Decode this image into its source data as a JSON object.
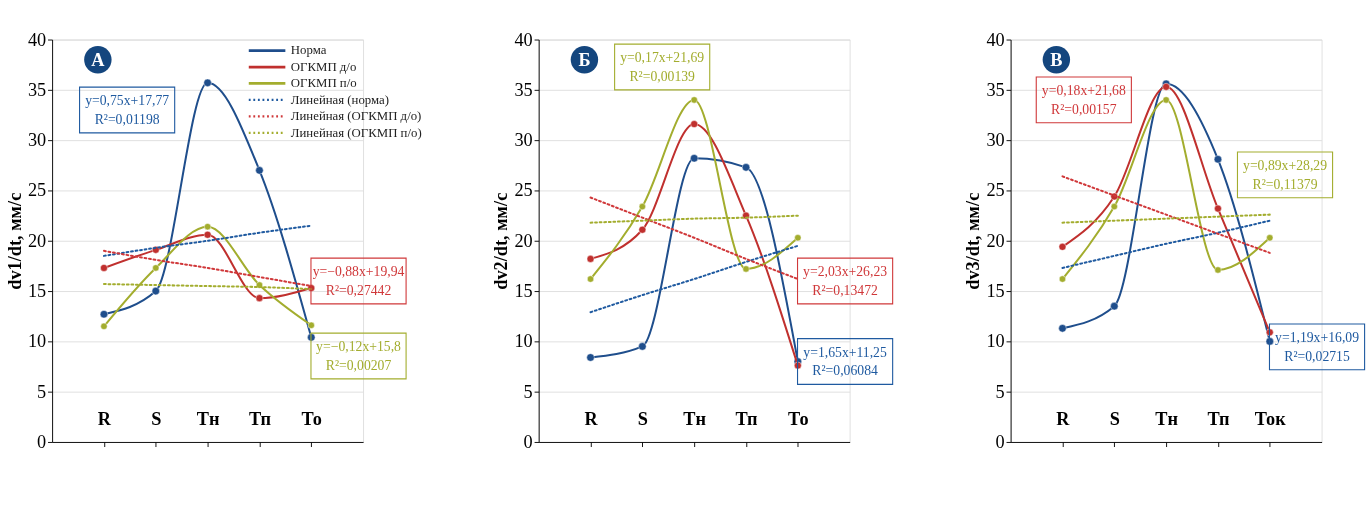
{
  "chart_data": [
    {
      "type": "line",
      "title": "А",
      "ylabel": "dv1/dt, мм/с",
      "categories": [
        "R",
        "S",
        "Тн",
        "Тп",
        "То"
      ],
      "ylim": [
        0,
        40
      ],
      "yticks": [
        0,
        5,
        10,
        15,
        20,
        25,
        30,
        35,
        40
      ],
      "grid": "y",
      "legend": "top right",
      "series": [
        {
          "name": "Норма",
          "color": "#1f4e8c",
          "marker": "circle",
          "line_style": "solid",
          "values": [
            12.7,
            15.0,
            35.7,
            27.0,
            10.4
          ]
        },
        {
          "name": "ОГКМП д/о",
          "color": "#c0302e",
          "marker": "circle",
          "line_style": "solid",
          "values": [
            17.3,
            19.1,
            20.6,
            14.3,
            15.3
          ]
        },
        {
          "name": "ОГКМП п/о",
          "color": "#a3ad2e",
          "marker": "circle",
          "line_style": "solid",
          "values": [
            11.5,
            17.3,
            21.4,
            15.6,
            11.6
          ]
        },
        {
          "name": "Линейная (норма)",
          "color": "#1f5aa0",
          "marker": "none",
          "line_style": "dotted",
          "values": [
            18.5,
            19.3,
            20.0,
            20.8,
            21.5
          ]
        },
        {
          "name": "Линейная (ОГКМП д/о)",
          "color": "#d0383a",
          "marker": "none",
          "line_style": "dotted",
          "values": [
            19.0,
            18.1,
            17.3,
            16.4,
            15.5
          ]
        },
        {
          "name": "Линейная (ОГКМП п/о)",
          "color": "#a3ad2e",
          "marker": "none",
          "line_style": "dotted",
          "values": [
            15.7,
            15.6,
            15.5,
            15.4,
            15.2
          ]
        }
      ],
      "annotations": [
        "y=0,75x+17,77\nR²=0,01198",
        "y=−0,88x+19,94\nR²=0,27442",
        "y=−0,12x+15,8\nR²=0,00207"
      ]
    },
    {
      "type": "line",
      "title": "Б",
      "ylabel": "dv2/dt, мм/с",
      "categories": [
        "R",
        "S",
        "Тн",
        "Тп",
        "То"
      ],
      "ylim": [
        0,
        40
      ],
      "yticks": [
        0,
        5,
        10,
        15,
        20,
        25,
        30,
        35,
        40
      ],
      "grid": "y",
      "series": [
        {
          "color": "#1f4e8c",
          "marker": "circle",
          "line_style": "solid",
          "values": [
            8.4,
            9.5,
            28.2,
            27.3,
            8.0
          ]
        },
        {
          "color": "#c0302e",
          "marker": "circle",
          "line_style": "solid",
          "values": [
            18.2,
            21.1,
            31.6,
            22.5,
            7.6
          ]
        },
        {
          "color": "#a3ad2e",
          "marker": "circle",
          "line_style": "solid",
          "values": [
            16.2,
            23.4,
            34.0,
            17.2,
            20.3
          ]
        },
        {
          "color": "#1f5aa0",
          "marker": "none",
          "line_style": "dotted",
          "values": [
            12.9,
            14.6,
            16.2,
            17.9,
            19.5
          ]
        },
        {
          "color": "#d0383a",
          "marker": "none",
          "line_style": "dotted",
          "values": [
            24.3,
            22.3,
            20.3,
            18.2,
            16.2
          ]
        },
        {
          "color": "#a3ad2e",
          "marker": "none",
          "line_style": "dotted",
          "values": [
            21.8,
            22.0,
            22.2,
            22.3,
            22.5
          ]
        }
      ],
      "annotations": [
        "y=1,65x+11,25\nR²=0,06084",
        "y=2,03x+26,23\nR²=0,13472",
        "y=0,17x+21,69\nR²=0,00139"
      ]
    },
    {
      "type": "line",
      "title": "В",
      "ylabel": "dv3/dt, мм/с",
      "categories": [
        "R",
        "S",
        "Тн",
        "Тп",
        "Ток"
      ],
      "ylim": [
        0,
        40
      ],
      "yticks": [
        0,
        5,
        10,
        15,
        20,
        25,
        30,
        35,
        40
      ],
      "grid": "y",
      "series": [
        {
          "color": "#1f4e8c",
          "marker": "circle",
          "line_style": "solid",
          "values": [
            11.3,
            13.5,
            35.6,
            28.1,
            10.0
          ]
        },
        {
          "color": "#c0302e",
          "marker": "circle",
          "line_style": "solid",
          "values": [
            19.4,
            24.4,
            35.3,
            23.2,
            10.9
          ]
        },
        {
          "color": "#a3ad2e",
          "marker": "circle",
          "line_style": "solid",
          "values": [
            16.2,
            23.4,
            34.0,
            17.1,
            20.3
          ]
        },
        {
          "color": "#1f5aa0",
          "marker": "none",
          "line_style": "dotted",
          "values": [
            17.3,
            18.5,
            19.7,
            20.8,
            22.0
          ]
        },
        {
          "color": "#d0383a",
          "marker": "none",
          "line_style": "dotted",
          "values": [
            26.4,
            24.5,
            22.6,
            20.7,
            18.8
          ]
        },
        {
          "color": "#a3ad2e",
          "marker": "none",
          "line_style": "dotted",
          "values": [
            21.8,
            22.0,
            22.2,
            22.4,
            22.6
          ]
        }
      ],
      "annotations": [
        "y=1,19x+16,09\nR²=0,02715",
        "y=0,18x+21,68\nR²=0,00157",
        "y=0,89x+28,29\nR²=0,11379"
      ]
    }
  ]
}
